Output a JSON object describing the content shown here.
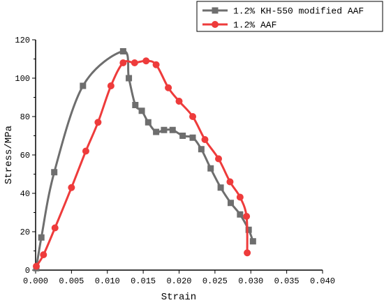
{
  "chart_data": {
    "type": "line",
    "title": "",
    "xlabel": "Strain",
    "ylabel": "Stress/MPa",
    "xlim": [
      0.0,
      0.04
    ],
    "ylim": [
      0,
      120
    ],
    "xticks": [
      "0.000",
      "0.005",
      "0.010",
      "0.015",
      "0.020",
      "0.025",
      "0.030",
      "0.035",
      "0.040"
    ],
    "yticks": [
      "0",
      "20",
      "40",
      "60",
      "80",
      "100",
      "120"
    ],
    "legend_position": "top-right",
    "grid": false,
    "series": [
      {
        "name": "1.2% KH-550 modified AAF",
        "color": "#6e6e6e",
        "marker": "square",
        "x": [
          0.0001,
          0.0008,
          0.0026,
          0.0066,
          0.0122,
          0.013,
          0.0139,
          0.0148,
          0.0157,
          0.0168,
          0.0179,
          0.0191,
          0.0205,
          0.0219,
          0.0231,
          0.0244,
          0.0258,
          0.0272,
          0.0285,
          0.0297,
          0.0303
        ],
        "y": [
          1,
          17,
          51,
          96,
          114,
          100,
          86,
          83,
          77,
          72,
          73,
          73,
          70,
          69,
          63,
          53,
          43,
          35,
          29,
          21,
          15
        ]
      },
      {
        "name": "1.2% AAF",
        "color": "#ee3b3b",
        "marker": "circle",
        "x": [
          0.0001,
          0.0011,
          0.0027,
          0.005,
          0.007,
          0.0087,
          0.0105,
          0.0122,
          0.0138,
          0.0154,
          0.0168,
          0.0185,
          0.02,
          0.0219,
          0.0236,
          0.0255,
          0.0271,
          0.0285,
          0.0294,
          0.0295
        ],
        "y": [
          2,
          8,
          22,
          43,
          62,
          77,
          96,
          108,
          108,
          109,
          107,
          95,
          88,
          80,
          68,
          58,
          46,
          38,
          28,
          9
        ]
      }
    ]
  }
}
